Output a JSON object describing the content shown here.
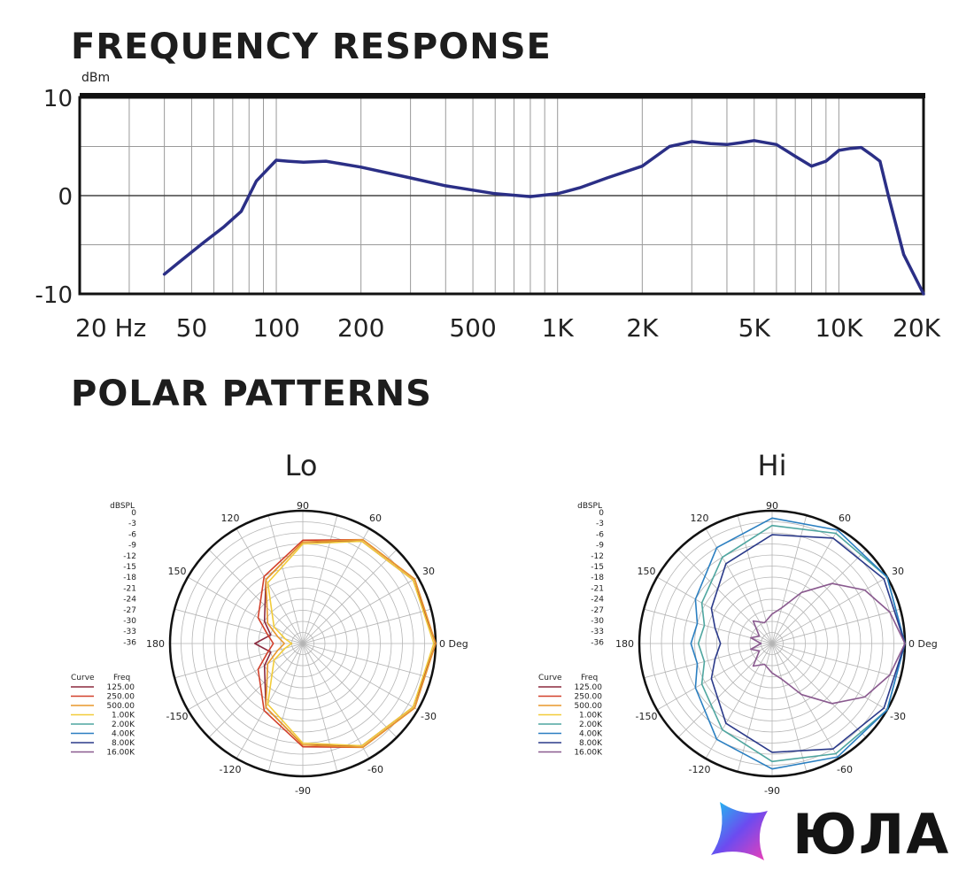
{
  "headings": {
    "frequency_response": "FREQUENCY RESPONSE",
    "polar_patterns": "POLAR PATTERNS"
  },
  "logo_text": "ЮЛА",
  "chart_data": [
    {
      "type": "line",
      "ylabel": "dBm",
      "ylim": [
        -10,
        10
      ],
      "y_ticks": [
        10,
        0,
        -10
      ],
      "xscale": "log",
      "xlim": [
        20,
        20000
      ],
      "x_ticks": [
        {
          "value": 20,
          "label": "20 Hz"
        },
        {
          "value": 50,
          "label": "50"
        },
        {
          "value": 100,
          "label": "100"
        },
        {
          "value": 200,
          "label": "200"
        },
        {
          "value": 500,
          "label": "500"
        },
        {
          "value": 1000,
          "label": "1K"
        },
        {
          "value": 2000,
          "label": "2K"
        },
        {
          "value": 5000,
          "label": "5K"
        },
        {
          "value": 10000,
          "label": "10K"
        },
        {
          "value": 20000,
          "label": "20K"
        }
      ],
      "grid": true,
      "line_color": "#2b2f86",
      "series": [
        {
          "x": [
            40,
            45,
            55,
            65,
            75,
            85,
            100,
            110,
            125,
            150,
            200,
            300,
            400,
            600,
            800,
            1000,
            1200,
            1500,
            2000,
            2500,
            3000,
            3500,
            4000,
            4500,
            5000,
            6000,
            7000,
            8000,
            9000,
            10000,
            11000,
            12000,
            13000,
            14000,
            15000,
            17000,
            20000
          ],
          "y": [
            -8,
            -6.8,
            -4.8,
            -3.2,
            -1.6,
            1.5,
            3.6,
            3.5,
            3.4,
            3.5,
            2.9,
            1.8,
            1.0,
            0.2,
            -0.1,
            0.2,
            0.8,
            1.8,
            3.0,
            5.0,
            5.5,
            5.3,
            5.2,
            5.4,
            5.6,
            5.2,
            4.0,
            3.0,
            3.5,
            4.6,
            4.8,
            4.9,
            4.2,
            3.5,
            0,
            -6,
            -10
          ]
        }
      ]
    },
    {
      "type": "polar",
      "title": "Lo",
      "r_label": "dBSPL",
      "r_ticks": [
        "0",
        "-3",
        "-6",
        "-9",
        "-12",
        "-15",
        "-18",
        "-21",
        "-24",
        "-27",
        "-30",
        "-33",
        "-36"
      ],
      "angle_labels": [
        {
          "deg": 0,
          "label": "0 Deg"
        },
        {
          "deg": 30,
          "label": "30"
        },
        {
          "deg": 60,
          "label": "60"
        },
        {
          "deg": 90,
          "label": "90"
        },
        {
          "deg": 120,
          "label": "120"
        },
        {
          "deg": 150,
          "label": "150"
        },
        {
          "deg": 180,
          "label": "180"
        },
        {
          "deg": -150,
          "label": "-150"
        },
        {
          "deg": -120,
          "label": "-120"
        },
        {
          "deg": -90,
          "label": "-90"
        },
        {
          "deg": -60,
          "label": "-60"
        },
        {
          "deg": -30,
          "label": "-30"
        }
      ],
      "legend": {
        "curve_header": "Curve",
        "freq_header": "Freq",
        "entries": [
          {
            "freq": "125.00",
            "color": "#8b2a3f"
          },
          {
            "freq": "250.00",
            "color": "#d2402b"
          },
          {
            "freq": "500.00",
            "color": "#e8972c"
          },
          {
            "freq": "1.00K",
            "color": "#f2cc3a"
          },
          {
            "freq": "2.00K",
            "color": "#4fa6a0"
          },
          {
            "freq": "4.00K",
            "color": "#2a7fc1"
          },
          {
            "freq": "8.00K",
            "color": "#2b3a8a"
          },
          {
            "freq": "16.00K",
            "color": "#8a5a8f"
          }
        ]
      },
      "series": [
        {
          "name": "125.00",
          "angles_deg": [
            0,
            30,
            60,
            90,
            120,
            150,
            165,
            180
          ],
          "levels_db": [
            0,
            -1.5,
            -4,
            -8.5,
            -16,
            -24,
            -27,
            -23
          ]
        },
        {
          "name": "250.00",
          "angles_deg": [
            0,
            30,
            60,
            90,
            120,
            150,
            165,
            180
          ],
          "levels_db": [
            0,
            -1,
            -3.5,
            -8,
            -15,
            -22,
            -26,
            -28
          ]
        },
        {
          "name": "500.00",
          "angles_deg": [
            0,
            30,
            60,
            90,
            120,
            150,
            165,
            180
          ],
          "levels_db": [
            0,
            -1,
            -3.5,
            -8.5,
            -16,
            -25,
            -29,
            -31
          ]
        },
        {
          "name": "1.00K",
          "angles_deg": [
            0,
            30,
            60,
            90,
            120,
            150,
            165,
            180
          ],
          "levels_db": [
            -0.5,
            -1.5,
            -4,
            -9,
            -17,
            -27,
            -31,
            -33
          ]
        }
      ]
    },
    {
      "type": "polar",
      "title": "Hi",
      "r_label": "dBSPL",
      "r_ticks": [
        "0",
        "-3",
        "-6",
        "-9",
        "-12",
        "-15",
        "-18",
        "-21",
        "-24",
        "-27",
        "-30",
        "-33",
        "-36"
      ],
      "angle_labels": [
        {
          "deg": 0,
          "label": "0 Deg"
        },
        {
          "deg": 30,
          "label": "30"
        },
        {
          "deg": 60,
          "label": "60"
        },
        {
          "deg": 90,
          "label": "90"
        },
        {
          "deg": 120,
          "label": "120"
        },
        {
          "deg": 150,
          "label": "150"
        },
        {
          "deg": 180,
          "label": "180"
        },
        {
          "deg": -150,
          "label": "-150"
        },
        {
          "deg": -120,
          "label": "-120"
        },
        {
          "deg": -90,
          "label": "-90"
        },
        {
          "deg": -60,
          "label": "-60"
        },
        {
          "deg": -30,
          "label": "-30"
        }
      ],
      "legend": {
        "curve_header": "Curve",
        "freq_header": "Freq",
        "entries": [
          {
            "freq": "125.00",
            "color": "#8b2a3f"
          },
          {
            "freq": "250.00",
            "color": "#d2402b"
          },
          {
            "freq": "500.00",
            "color": "#e8972c"
          },
          {
            "freq": "1.00K",
            "color": "#f2cc3a"
          },
          {
            "freq": "2.00K",
            "color": "#4fa6a0"
          },
          {
            "freq": "4.00K",
            "color": "#2a7fc1"
          },
          {
            "freq": "8.00K",
            "color": "#2b3a8a"
          },
          {
            "freq": "16.00K",
            "color": "#8a5a8f"
          }
        ]
      },
      "series": [
        {
          "name": "2.00K",
          "angles_deg": [
            0,
            30,
            60,
            90,
            120,
            150,
            165,
            180
          ],
          "levels_db": [
            0,
            0,
            -1.5,
            -4,
            -9,
            -14,
            -17,
            -16
          ]
        },
        {
          "name": "4.00K",
          "angles_deg": [
            0,
            30,
            60,
            90,
            120,
            150,
            165,
            180
          ],
          "levels_db": [
            0,
            0,
            -0.5,
            -2,
            -6,
            -12,
            -15,
            -14
          ]
        },
        {
          "name": "8.00K",
          "angles_deg": [
            0,
            30,
            60,
            90,
            120,
            150,
            165,
            180
          ],
          "levels_db": [
            0,
            -1,
            -3,
            -6.5,
            -11,
            -17,
            -20,
            -22
          ]
        },
        {
          "name": "16.00K",
          "angles_deg": [
            0,
            15,
            30,
            45,
            60,
            75,
            90,
            110,
            130,
            150,
            165,
            180
          ],
          "levels_db": [
            0,
            -3,
            -7,
            -13,
            -20,
            -26,
            -28,
            -30,
            -28,
            -32,
            -30,
            -33
          ]
        }
      ]
    }
  ]
}
